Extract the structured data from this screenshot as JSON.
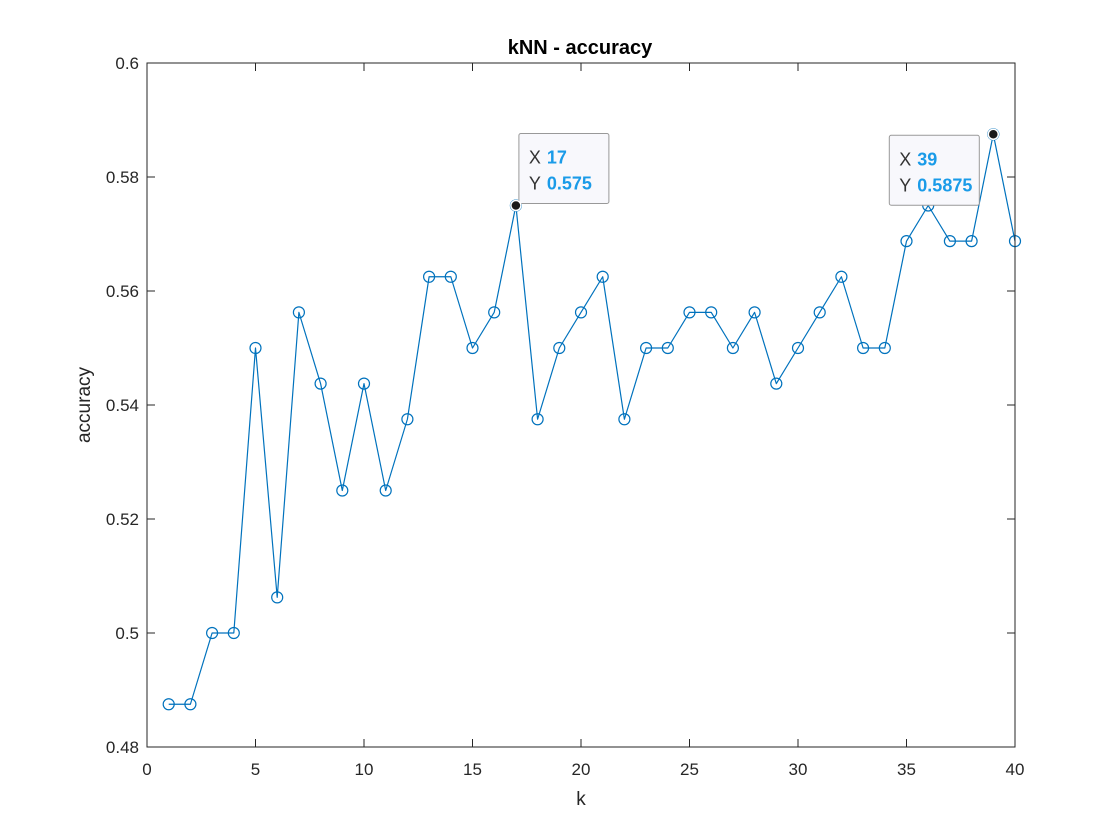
{
  "chart_data": {
    "type": "line",
    "title": "kNN - accuracy",
    "xlabel": "k",
    "ylabel": "accuracy",
    "xlim": [
      0,
      40
    ],
    "ylim": [
      0.48,
      0.6
    ],
    "x_ticks": [
      "0",
      "5",
      "10",
      "15",
      "20",
      "25",
      "30",
      "35",
      "40"
    ],
    "y_ticks": [
      "0.48",
      "0.5",
      "0.52",
      "0.54",
      "0.56",
      "0.58",
      "0.6"
    ],
    "grid": false,
    "marker": "circle",
    "color": "#0072bd",
    "series": [
      {
        "x": [
          1,
          2,
          3,
          4,
          5,
          6,
          7,
          8,
          9,
          10,
          11,
          12,
          13,
          14,
          15,
          16,
          17,
          18,
          19,
          20,
          21,
          22,
          23,
          24,
          25,
          26,
          27,
          28,
          29,
          30,
          31,
          32,
          33,
          34,
          35,
          36,
          37,
          38,
          39,
          40
        ],
        "values": [
          0.4875,
          0.4875,
          0.5,
          0.5,
          0.55,
          0.50625,
          0.55625,
          0.54375,
          0.525,
          0.54375,
          0.525,
          0.5375,
          0.5625,
          0.5625,
          0.55,
          0.55625,
          0.575,
          0.5375,
          0.55,
          0.55625,
          0.5625,
          0.5375,
          0.55,
          0.55,
          0.55625,
          0.55625,
          0.55,
          0.55625,
          0.54375,
          0.55,
          0.55625,
          0.5625,
          0.55,
          0.55,
          0.56875,
          0.575,
          0.56875,
          0.56875,
          0.5875,
          0.56875
        ]
      }
    ],
    "datatips": [
      {
        "x": 17,
        "y": 0.575,
        "x_key": "X",
        "y_key": "Y",
        "x_text": "17",
        "y_text": "0.575"
      },
      {
        "x": 39,
        "y": 0.5875,
        "x_key": "X",
        "y_key": "Y",
        "x_text": "39",
        "y_text": "0.5875"
      }
    ]
  }
}
